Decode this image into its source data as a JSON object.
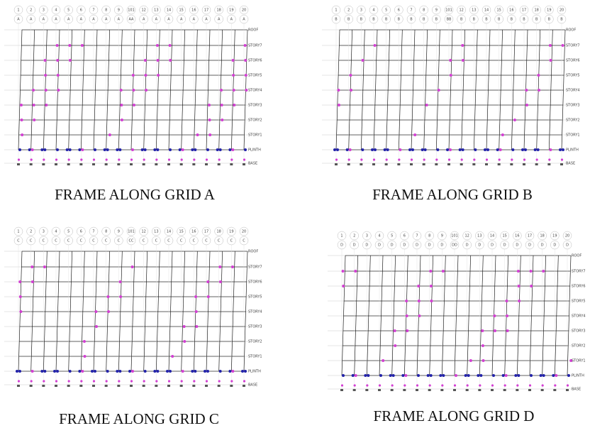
{
  "panels": [
    {
      "caption": "FRAME ALONG GRID A",
      "grid_labels": [
        "1",
        "2",
        "3",
        "4",
        "5",
        "6",
        "7",
        "8",
        "9",
        "101",
        "12",
        "13",
        "14",
        "15",
        "16",
        "17",
        "18",
        "19",
        "20"
      ],
      "grid_letters": [
        "A",
        "A",
        "A",
        "A",
        "A",
        "A",
        "A",
        "A",
        "A",
        "AA",
        "A",
        "A",
        "A",
        "A",
        "A",
        "A",
        "A",
        "A",
        "A"
      ]
    },
    {
      "caption": "FRAME ALONG GRID B",
      "grid_labels": [
        "1",
        "2",
        "3",
        "4",
        "5",
        "6",
        "7",
        "8",
        "9",
        "101",
        "12",
        "13",
        "14",
        "15",
        "16",
        "17",
        "18",
        "19",
        "20"
      ],
      "grid_letters": [
        "B",
        "B",
        "B",
        "B",
        "B",
        "B",
        "B",
        "B",
        "B",
        "BB",
        "B",
        "B",
        "B",
        "B",
        "B",
        "B",
        "B",
        "B",
        "B"
      ]
    },
    {
      "caption": "FRAME ALONG GRID C",
      "grid_labels": [
        "1",
        "2",
        "3",
        "4",
        "5",
        "6",
        "7",
        "8",
        "9",
        "101",
        "12",
        "13",
        "14",
        "15",
        "16",
        "17",
        "18",
        "19",
        "20"
      ],
      "grid_letters": [
        "C",
        "C",
        "C",
        "C",
        "C",
        "C",
        "C",
        "C",
        "C",
        "CC",
        "C",
        "C",
        "C",
        "C",
        "C",
        "C",
        "C",
        "C",
        "C"
      ]
    },
    {
      "caption": "FRAME ALONG GRID D",
      "grid_labels": [
        "1",
        "2",
        "3",
        "4",
        "5",
        "6",
        "7",
        "8",
        "9",
        "101",
        "12",
        "13",
        "14",
        "15",
        "16",
        "17",
        "18",
        "19",
        "20"
      ],
      "grid_letters": [
        "D",
        "D",
        "D",
        "D",
        "D",
        "D",
        "D",
        "D",
        "D",
        "DD",
        "D",
        "D",
        "D",
        "D",
        "D",
        "D",
        "D",
        "D",
        "D"
      ]
    }
  ],
  "story_labels": [
    "ROOF",
    "STORY7",
    "STORY6",
    "STORY5",
    "STORY4",
    "STORY3",
    "STORY2",
    "STORY1",
    "PLINTH",
    "BASE"
  ]
}
